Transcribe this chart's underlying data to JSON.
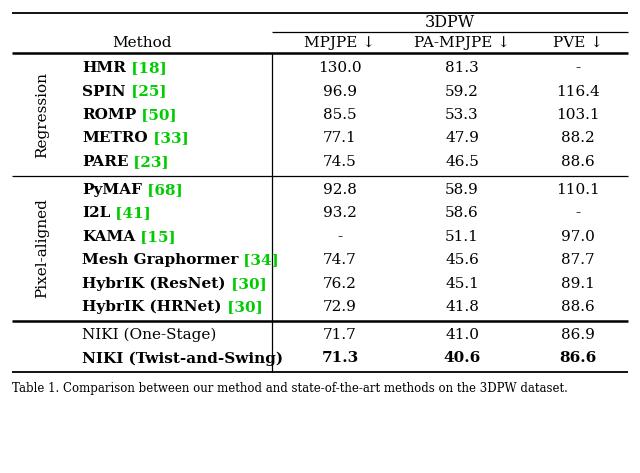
{
  "title": "3DPW",
  "group1_rows": [
    {
      "method": "HMR",
      "cite": " [18]",
      "mpjpe": "130.0",
      "pa": "81.3",
      "pve": "-"
    },
    {
      "method": "SPIN",
      "cite": " [25]",
      "mpjpe": "96.9",
      "pa": "59.2",
      "pve": "116.4"
    },
    {
      "method": "ROMP",
      "cite": " [50]",
      "mpjpe": "85.5",
      "pa": "53.3",
      "pve": "103.1"
    },
    {
      "method": "METRO",
      "cite": " [33]",
      "mpjpe": "77.1",
      "pa": "47.9",
      "pve": "88.2"
    },
    {
      "method": "PARE",
      "cite": " [23]",
      "mpjpe": "74.5",
      "pa": "46.5",
      "pve": "88.6"
    }
  ],
  "group2_rows": [
    {
      "method": "PyMAF",
      "cite": " [68]",
      "mpjpe": "92.8",
      "pa": "58.9",
      "pve": "110.1"
    },
    {
      "method": "I2L",
      "cite": " [41]",
      "mpjpe": "93.2",
      "pa": "58.6",
      "pve": "-"
    },
    {
      "method": "KAMA",
      "cite": " [15]",
      "mpjpe": "-",
      "pa": "51.1",
      "pve": "97.0"
    },
    {
      "method": "Mesh Graphormer",
      "cite": " [34]",
      "mpjpe": "74.7",
      "pa": "45.6",
      "pve": "87.7"
    },
    {
      "method": "HybrIK (ResNet)",
      "cite": " [30]",
      "mpjpe": "76.2",
      "pa": "45.1",
      "pve": "89.1"
    },
    {
      "method": "HybrIK (HRNet)",
      "cite": " [30]",
      "mpjpe": "72.9",
      "pa": "41.8",
      "pve": "88.6"
    }
  ],
  "niki_rows": [
    {
      "method": "NIKI (One-Stage)",
      "cite": "",
      "mpjpe": "71.7",
      "pa": "41.0",
      "pve": "86.9",
      "bold": false
    },
    {
      "method": "NIKI (Twist-and-Swing)",
      "cite": "",
      "mpjpe": "71.3",
      "pa": "40.6",
      "pve": "86.6",
      "bold": true
    }
  ],
  "cite_color": "#00cc00",
  "bg_color": "#ffffff",
  "text_color": "#000000",
  "font_size": 11.0,
  "caption": "Table 1. Comparison between our method and state-of-the-art methods on the 3DPW dataset."
}
